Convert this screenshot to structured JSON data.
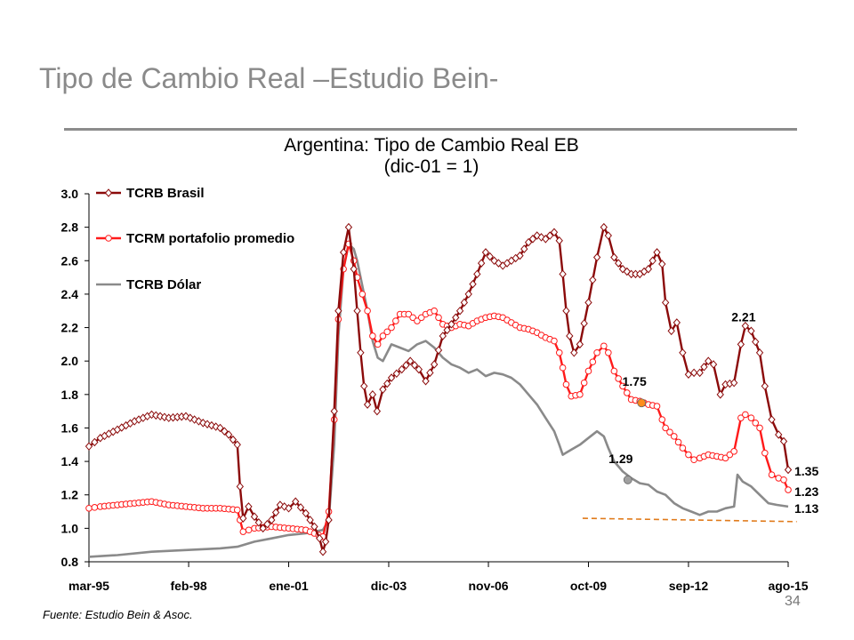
{
  "slide": {
    "title": "Tipo de Cambio Real –Estudio Bein-",
    "source": "Fuente: Estudio Bein & Asoc.",
    "page_number": "34"
  },
  "chart_data": {
    "type": "line",
    "title": "Argentina: Tipo de Cambio Real EB",
    "subtitle": "(dic-01 = 1)",
    "xlabel": "",
    "ylabel": "",
    "x_range": [
      1995.17,
      2015.83
    ],
    "ylim": [
      0.8,
      3.0
    ],
    "y_ticks": [
      "0.8",
      "1.0",
      "1.2",
      "1.4",
      "1.6",
      "1.8",
      "2.0",
      "2.2",
      "2.4",
      "2.6",
      "2.8",
      "3.0"
    ],
    "x_ticks": [
      {
        "label": "mar-95",
        "x": 1995.17
      },
      {
        "label": "feb-98",
        "x": 1998.08
      },
      {
        "label": "ene-01",
        "x": 2001.0
      },
      {
        "label": "dic-03",
        "x": 2003.92
      },
      {
        "label": "nov-06",
        "x": 2006.83
      },
      {
        "label": "oct-09",
        "x": 2009.75
      },
      {
        "label": "sep-12",
        "x": 2012.67
      },
      {
        "label": "ago-15",
        "x": 2015.58
      }
    ],
    "grid": false,
    "legend_position": "top-left",
    "series": [
      {
        "name": "TCRB Brasil",
        "color": "#8b0a0a",
        "marker": "diamond",
        "points": [
          [
            1995.17,
            1.49
          ],
          [
            1995.5,
            1.54
          ],
          [
            1996.0,
            1.59
          ],
          [
            1996.5,
            1.64
          ],
          [
            1997.0,
            1.68
          ],
          [
            1997.5,
            1.66
          ],
          [
            1998.0,
            1.67
          ],
          [
            1998.5,
            1.63
          ],
          [
            1999.0,
            1.6
          ],
          [
            1999.25,
            1.56
          ],
          [
            1999.5,
            1.5
          ],
          [
            1999.58,
            1.25
          ],
          [
            1999.67,
            1.06
          ],
          [
            1999.83,
            1.13
          ],
          [
            2000.0,
            1.07
          ],
          [
            2000.25,
            1.0
          ],
          [
            2000.5,
            1.05
          ],
          [
            2000.75,
            1.14
          ],
          [
            2001.0,
            1.12
          ],
          [
            2001.2,
            1.16
          ],
          [
            2001.5,
            1.09
          ],
          [
            2001.75,
            1.01
          ],
          [
            2001.9,
            0.94
          ],
          [
            2002.0,
            0.86
          ],
          [
            2002.08,
            0.92
          ],
          [
            2002.17,
            1.05
          ],
          [
            2002.33,
            1.7
          ],
          [
            2002.45,
            2.3
          ],
          [
            2002.6,
            2.65
          ],
          [
            2002.75,
            2.8
          ],
          [
            2002.9,
            2.55
          ],
          [
            2003.0,
            2.3
          ],
          [
            2003.1,
            2.05
          ],
          [
            2003.2,
            1.85
          ],
          [
            2003.3,
            1.74
          ],
          [
            2003.45,
            1.8
          ],
          [
            2003.58,
            1.7
          ],
          [
            2003.75,
            1.83
          ],
          [
            2004.0,
            1.9
          ],
          [
            2004.3,
            1.95
          ],
          [
            2004.55,
            2.0
          ],
          [
            2004.8,
            1.95
          ],
          [
            2005.0,
            1.88
          ],
          [
            2005.25,
            1.98
          ],
          [
            2005.5,
            2.15
          ],
          [
            2005.75,
            2.22
          ],
          [
            2006.0,
            2.3
          ],
          [
            2006.25,
            2.4
          ],
          [
            2006.5,
            2.52
          ],
          [
            2006.75,
            2.65
          ],
          [
            2007.0,
            2.6
          ],
          [
            2007.25,
            2.57
          ],
          [
            2007.5,
            2.6
          ],
          [
            2007.75,
            2.63
          ],
          [
            2008.0,
            2.71
          ],
          [
            2008.25,
            2.75
          ],
          [
            2008.5,
            2.73
          ],
          [
            2008.75,
            2.77
          ],
          [
            2008.9,
            2.72
          ],
          [
            2009.0,
            2.52
          ],
          [
            2009.1,
            2.3
          ],
          [
            2009.2,
            2.15
          ],
          [
            2009.33,
            2.05
          ],
          [
            2009.5,
            2.1
          ],
          [
            2009.75,
            2.35
          ],
          [
            2010.0,
            2.62
          ],
          [
            2010.2,
            2.8
          ],
          [
            2010.33,
            2.75
          ],
          [
            2010.5,
            2.62
          ],
          [
            2010.75,
            2.55
          ],
          [
            2011.0,
            2.52
          ],
          [
            2011.25,
            2.52
          ],
          [
            2011.5,
            2.55
          ],
          [
            2011.75,
            2.65
          ],
          [
            2011.9,
            2.58
          ],
          [
            2012.0,
            2.35
          ],
          [
            2012.17,
            2.18
          ],
          [
            2012.33,
            2.23
          ],
          [
            2012.5,
            2.05
          ],
          [
            2012.67,
            1.92
          ],
          [
            2012.83,
            1.93
          ],
          [
            2013.0,
            1.93
          ],
          [
            2013.25,
            2.0
          ],
          [
            2013.4,
            1.98
          ],
          [
            2013.6,
            1.8
          ],
          [
            2013.75,
            1.86
          ],
          [
            2014.0,
            1.87
          ],
          [
            2014.2,
            2.1
          ],
          [
            2014.33,
            2.21
          ],
          [
            2014.5,
            2.18
          ],
          [
            2014.75,
            2.05
          ],
          [
            2014.9,
            1.85
          ],
          [
            2015.1,
            1.65
          ],
          [
            2015.3,
            1.56
          ],
          [
            2015.45,
            1.52
          ],
          [
            2015.58,
            1.35
          ]
        ]
      },
      {
        "name": "TCRM portafolio promedio",
        "color": "#ff1a1a",
        "marker": "circle",
        "points": [
          [
            1995.17,
            1.12
          ],
          [
            1995.5,
            1.13
          ],
          [
            1996.0,
            1.14
          ],
          [
            1996.5,
            1.15
          ],
          [
            1997.0,
            1.16
          ],
          [
            1997.5,
            1.14
          ],
          [
            1998.0,
            1.13
          ],
          [
            1998.5,
            1.12
          ],
          [
            1999.0,
            1.12
          ],
          [
            1999.5,
            1.11
          ],
          [
            1999.58,
            1.05
          ],
          [
            1999.67,
            0.98
          ],
          [
            2000.0,
            1.0
          ],
          [
            2000.5,
            1.01
          ],
          [
            2001.0,
            1.0
          ],
          [
            2001.5,
            0.99
          ],
          [
            2001.75,
            0.97
          ],
          [
            2002.0,
            0.95
          ],
          [
            2002.17,
            1.1
          ],
          [
            2002.33,
            1.65
          ],
          [
            2002.45,
            2.25
          ],
          [
            2002.6,
            2.55
          ],
          [
            2002.75,
            2.7
          ],
          [
            2002.9,
            2.6
          ],
          [
            2003.0,
            2.5
          ],
          [
            2003.15,
            2.4
          ],
          [
            2003.3,
            2.3
          ],
          [
            2003.45,
            2.15
          ],
          [
            2003.6,
            2.1
          ],
          [
            2003.75,
            2.15
          ],
          [
            2004.0,
            2.2
          ],
          [
            2004.25,
            2.28
          ],
          [
            2004.5,
            2.28
          ],
          [
            2004.75,
            2.24
          ],
          [
            2005.0,
            2.28
          ],
          [
            2005.25,
            2.3
          ],
          [
            2005.5,
            2.22
          ],
          [
            2005.75,
            2.2
          ],
          [
            2006.0,
            2.22
          ],
          [
            2006.25,
            2.21
          ],
          [
            2006.5,
            2.24
          ],
          [
            2006.75,
            2.26
          ],
          [
            2007.0,
            2.27
          ],
          [
            2007.25,
            2.26
          ],
          [
            2007.5,
            2.23
          ],
          [
            2007.75,
            2.2
          ],
          [
            2008.0,
            2.19
          ],
          [
            2008.25,
            2.17
          ],
          [
            2008.5,
            2.14
          ],
          [
            2008.75,
            2.12
          ],
          [
            2008.9,
            2.05
          ],
          [
            2009.0,
            1.96
          ],
          [
            2009.1,
            1.86
          ],
          [
            2009.25,
            1.79
          ],
          [
            2009.5,
            1.8
          ],
          [
            2009.75,
            1.94
          ],
          [
            2010.0,
            2.05
          ],
          [
            2010.2,
            2.09
          ],
          [
            2010.33,
            2.05
          ],
          [
            2010.5,
            1.94
          ],
          [
            2010.75,
            1.85
          ],
          [
            2011.0,
            1.77
          ],
          [
            2011.25,
            1.76
          ],
          [
            2011.5,
            1.74
          ],
          [
            2011.75,
            1.73
          ],
          [
            2011.9,
            1.65
          ],
          [
            2012.0,
            1.6
          ],
          [
            2012.25,
            1.55
          ],
          [
            2012.5,
            1.48
          ],
          [
            2012.67,
            1.44
          ],
          [
            2012.83,
            1.41
          ],
          [
            2013.0,
            1.42
          ],
          [
            2013.25,
            1.44
          ],
          [
            2013.5,
            1.43
          ],
          [
            2013.75,
            1.42
          ],
          [
            2014.0,
            1.46
          ],
          [
            2014.2,
            1.66
          ],
          [
            2014.33,
            1.68
          ],
          [
            2014.5,
            1.66
          ],
          [
            2014.75,
            1.6
          ],
          [
            2014.9,
            1.45
          ],
          [
            2015.1,
            1.32
          ],
          [
            2015.3,
            1.3
          ],
          [
            2015.45,
            1.29
          ],
          [
            2015.58,
            1.23
          ]
        ]
      },
      {
        "name": "TCRB Dólar",
        "color": "#8a8a8a",
        "marker": "none",
        "points": [
          [
            1995.17,
            0.83
          ],
          [
            1996.0,
            0.84
          ],
          [
            1997.0,
            0.86
          ],
          [
            1998.0,
            0.87
          ],
          [
            1999.0,
            0.88
          ],
          [
            1999.5,
            0.89
          ],
          [
            2000.0,
            0.92
          ],
          [
            2000.5,
            0.94
          ],
          [
            2001.0,
            0.96
          ],
          [
            2001.5,
            0.97
          ],
          [
            2002.0,
            0.99
          ],
          [
            2002.17,
            1.05
          ],
          [
            2002.33,
            1.5
          ],
          [
            2002.45,
            2.15
          ],
          [
            2002.6,
            2.55
          ],
          [
            2002.75,
            2.7
          ],
          [
            2002.9,
            2.67
          ],
          [
            2003.0,
            2.6
          ],
          [
            2003.15,
            2.45
          ],
          [
            2003.3,
            2.3
          ],
          [
            2003.45,
            2.12
          ],
          [
            2003.6,
            2.02
          ],
          [
            2003.75,
            2.0
          ],
          [
            2004.0,
            2.1
          ],
          [
            2004.25,
            2.08
          ],
          [
            2004.5,
            2.06
          ],
          [
            2004.75,
            2.1
          ],
          [
            2005.0,
            2.12
          ],
          [
            2005.25,
            2.08
          ],
          [
            2005.5,
            2.02
          ],
          [
            2005.75,
            1.98
          ],
          [
            2006.0,
            1.96
          ],
          [
            2006.25,
            1.93
          ],
          [
            2006.5,
            1.95
          ],
          [
            2006.75,
            1.91
          ],
          [
            2007.0,
            1.93
          ],
          [
            2007.25,
            1.92
          ],
          [
            2007.5,
            1.9
          ],
          [
            2007.75,
            1.86
          ],
          [
            2008.0,
            1.8
          ],
          [
            2008.25,
            1.74
          ],
          [
            2008.5,
            1.66
          ],
          [
            2008.75,
            1.58
          ],
          [
            2008.9,
            1.5
          ],
          [
            2009.0,
            1.44
          ],
          [
            2009.25,
            1.47
          ],
          [
            2009.5,
            1.5
          ],
          [
            2009.75,
            1.54
          ],
          [
            2010.0,
            1.58
          ],
          [
            2010.2,
            1.55
          ],
          [
            2010.33,
            1.48
          ],
          [
            2010.5,
            1.4
          ],
          [
            2010.75,
            1.34
          ],
          [
            2011.0,
            1.3
          ],
          [
            2011.25,
            1.27
          ],
          [
            2011.5,
            1.26
          ],
          [
            2011.75,
            1.22
          ],
          [
            2012.0,
            1.2
          ],
          [
            2012.25,
            1.15
          ],
          [
            2012.5,
            1.12
          ],
          [
            2012.75,
            1.1
          ],
          [
            2013.0,
            1.08
          ],
          [
            2013.25,
            1.1
          ],
          [
            2013.5,
            1.1
          ],
          [
            2013.75,
            1.12
          ],
          [
            2014.0,
            1.13
          ],
          [
            2014.1,
            1.32
          ],
          [
            2014.25,
            1.28
          ],
          [
            2014.5,
            1.25
          ],
          [
            2014.75,
            1.2
          ],
          [
            2015.0,
            1.15
          ],
          [
            2015.25,
            1.14
          ],
          [
            2015.58,
            1.13
          ]
        ]
      }
    ],
    "reference_line": {
      "color": "#e07a1a",
      "style": "dashed",
      "points": [
        [
          2009.58,
          1.06
        ],
        [
          2015.83,
          1.04
        ]
      ]
    },
    "highlighted_points": [
      {
        "x": 2011.3,
        "y": 1.75,
        "color": "#ff8c1a"
      },
      {
        "x": 2010.9,
        "y": 1.29,
        "color": "#a0a0a0"
      }
    ],
    "annotations": [
      {
        "text": "2.21",
        "x": 2014.33,
        "y": 2.21,
        "position": "above"
      },
      {
        "text": "1.75",
        "x": 2011.3,
        "y": 1.75,
        "position": "above-left"
      },
      {
        "text": "1.29",
        "x": 2010.9,
        "y": 1.29,
        "position": "above-left"
      },
      {
        "text": "1.35",
        "x": 2015.58,
        "y": 1.35,
        "position": "right"
      },
      {
        "text": "1.23",
        "x": 2015.58,
        "y": 1.23,
        "position": "right"
      },
      {
        "text": "1.13",
        "x": 2015.58,
        "y": 1.13,
        "position": "right"
      }
    ]
  }
}
